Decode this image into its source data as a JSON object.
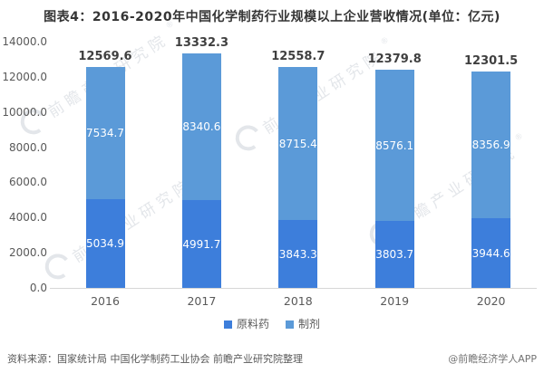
{
  "title": "图表4：2016-2020年中国化学制药行业规模以上企业营收情况(单位：亿元)",
  "chart_data": {
    "type": "bar",
    "stacked": true,
    "categories": [
      "2016",
      "2017",
      "2018",
      "2019",
      "2020"
    ],
    "series": [
      {
        "name": "原料药",
        "color": "#3d7edb",
        "values": [
          5034.9,
          4991.7,
          3843.3,
          3803.7,
          3944.6
        ]
      },
      {
        "name": "制剂",
        "color": "#5b9ad8",
        "values": [
          7534.7,
          8340.6,
          8715.4,
          8576.1,
          8356.9
        ]
      }
    ],
    "totals": [
      12569.6,
      13332.3,
      12558.7,
      12379.8,
      12301.5
    ],
    "ylim": [
      0,
      14000
    ],
    "ytick_step": 2000,
    "ytick_labels": [
      "0.0",
      "2000.0",
      "4000.0",
      "6000.0",
      "8000.0",
      "10000.0",
      "12000.0",
      "14000.0"
    ],
    "grid": false,
    "legend_position": "bottom",
    "data_label_color": "#ffffff",
    "total_label_color": "#3f3f3f"
  },
  "watermark": {
    "text": "前瞻产业研究院",
    "reg": "®"
  },
  "footer": {
    "source": "资料来源：国家统计局 中国化学制药工业协会 前瞻产业研究院整理",
    "brand": "@前瞻经济学人APP"
  }
}
